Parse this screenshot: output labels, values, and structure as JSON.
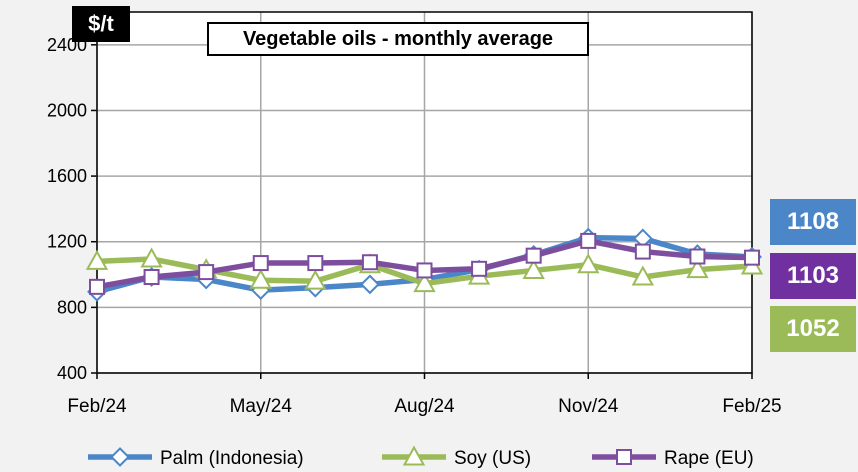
{
  "chart_data": {
    "type": "line",
    "title": "Vegetable oils - monthly average",
    "ylabel": "$/t",
    "xlabel": "",
    "ylim": [
      400,
      2600
    ],
    "yticks": [
      400,
      800,
      1200,
      1600,
      2000,
      2400
    ],
    "grid": true,
    "legend_position": "bottom",
    "x_tick_labels": [
      "Feb/24",
      "May/24",
      "Aug/24",
      "Nov/24",
      "Feb/25"
    ],
    "x": [
      "Feb/24",
      "Mar/24",
      "Apr/24",
      "May/24",
      "Jun/24",
      "Jul/24",
      "Aug/24",
      "Sep/24",
      "Oct/24",
      "Nov/24",
      "Dec/24",
      "Jan/25",
      "Feb/25"
    ],
    "series": [
      {
        "name": "Palm (Indonesia)",
        "color": "#4a86c8",
        "marker": "diamond",
        "values": [
          895,
          985,
          970,
          905,
          920,
          940,
          970,
          1030,
          1120,
          1225,
          1220,
          1125,
          1108
        ],
        "end_label": "1108"
      },
      {
        "name": "Soy (US)",
        "color": "#9bbb59",
        "marker": "triangle",
        "values": [
          1080,
          1095,
          1030,
          965,
          960,
          1060,
          945,
          990,
          1025,
          1060,
          985,
          1030,
          1052
        ],
        "end_label": "1052"
      },
      {
        "name": "Rape (EU)",
        "color": "#7d4e9e",
        "marker": "square",
        "values": [
          925,
          985,
          1015,
          1070,
          1070,
          1075,
          1025,
          1035,
          1115,
          1205,
          1140,
          1110,
          1103
        ],
        "end_label": "1103"
      }
    ]
  }
}
